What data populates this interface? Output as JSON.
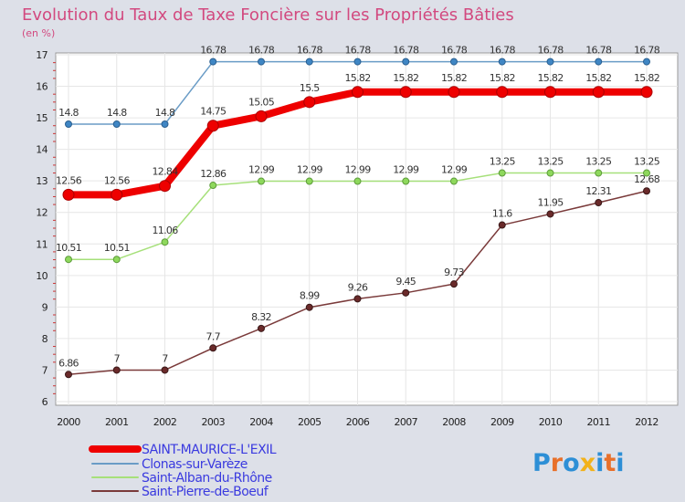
{
  "colors": {
    "saint_maurice": "#ee0000",
    "clonas": "#6a9cc6",
    "saint_alban": "#a6e07a",
    "saint_pierre": "#7a3a3a",
    "title": "#d2497f",
    "legend_text": "#3a3adf"
  },
  "chart_data": {
    "type": "line",
    "title": "Evolution du Taux de Taxe Foncière sur les Propriétés Bâties",
    "ylabel": "(en %)",
    "xlabel": "",
    "ylim": [
      6,
      17
    ],
    "yticks": [
      "6",
      "7",
      "8",
      "9",
      "10",
      "11",
      "12",
      "13",
      "14",
      "15",
      "16",
      "17"
    ],
    "categories": [
      "2000",
      "2001",
      "2002",
      "2003",
      "2004",
      "2005",
      "2006",
      "2007",
      "2008",
      "2009",
      "2010",
      "2011",
      "2012"
    ],
    "grid": true,
    "series": [
      {
        "name": "SAINT-MAURICE-L'EXIL",
        "values": [
          12.56,
          12.56,
          12.84,
          14.75,
          15.05,
          15.5,
          15.82,
          15.82,
          15.82,
          15.82,
          15.82,
          15.82,
          15.82
        ],
        "labels": [
          "12.56",
          "12.56",
          "12.84",
          "14.75",
          "15.05",
          "15.5",
          "15.82",
          "15.82",
          "15.82",
          "15.82",
          "15.82",
          "15.82",
          "15.82"
        ]
      },
      {
        "name": "Clonas-sur-Varèze",
        "values": [
          14.8,
          14.8,
          14.8,
          16.78,
          16.78,
          16.78,
          16.78,
          16.78,
          16.78,
          16.78,
          16.78,
          16.78,
          16.78
        ],
        "labels": [
          "14.8",
          "14.8",
          "14.8",
          "16.78",
          "16.78",
          "16.78",
          "16.78",
          "16.78",
          "16.78",
          "16.78",
          "16.78",
          "16.78",
          "16.78"
        ]
      },
      {
        "name": "Saint-Alban-du-Rhône",
        "values": [
          10.51,
          10.51,
          11.06,
          12.86,
          12.99,
          12.99,
          12.99,
          12.99,
          12.99,
          13.25,
          13.25,
          13.25,
          13.25
        ],
        "labels": [
          "10.51",
          "10.51",
          "11.06",
          "12.86",
          "12.99",
          "12.99",
          "12.99",
          "12.99",
          "12.99",
          "13.25",
          "13.25",
          "13.25",
          "13.25"
        ]
      },
      {
        "name": "Saint-Pierre-de-Boeuf",
        "values": [
          6.86,
          7,
          7,
          7.7,
          8.32,
          8.99,
          9.26,
          9.45,
          9.73,
          11.6,
          11.95,
          12.31,
          12.68
        ],
        "labels": [
          "6.86",
          "7",
          "7",
          "7.7",
          "8.32",
          "8.99",
          "9.26",
          "9.45",
          "9.73",
          "11.6",
          "11.95",
          "12.31",
          "12.68"
        ]
      }
    ]
  },
  "watermark": {
    "letters": [
      "P",
      "r",
      "o",
      "x",
      "i",
      "t",
      "i"
    ],
    "colors": [
      "#2d8fd6",
      "#e8702a",
      "#2d8fd6",
      "#f2b21b",
      "#2d8fd6",
      "#e8702a",
      "#2d8fd6"
    ]
  }
}
